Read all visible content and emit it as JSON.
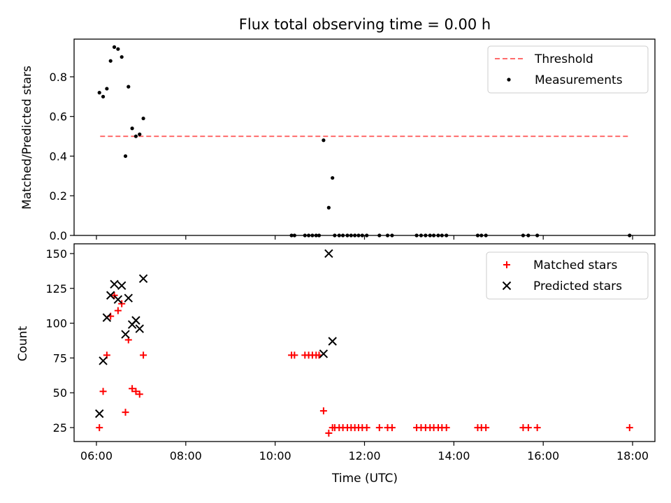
{
  "title": "Flux total observing time = 0.00 h",
  "xlabel": "Time (UTC)",
  "colors": {
    "threshold": "#ff6b6b",
    "matched": "#ff0000",
    "predicted": "#000000",
    "measurements": "#000000"
  },
  "chart_data": [
    {
      "type": "scatter",
      "ylabel": "Matched/Predicted stars",
      "xlim": [
        "05:30",
        "18:30"
      ],
      "ylim": [
        0,
        0.99
      ],
      "xticks": [
        "06:00",
        "08:00",
        "10:00",
        "12:00",
        "14:00",
        "16:00",
        "18:00"
      ],
      "yticks": [
        0.0,
        0.2,
        0.4,
        0.6,
        0.8
      ],
      "ytick_labels": [
        "0.0",
        "0.2",
        "0.4",
        "0.6",
        "0.8"
      ],
      "legend_position": "top-right",
      "series": [
        {
          "name": "Threshold",
          "kind": "dashed-line",
          "x": [
            "06:05",
            "17:55"
          ],
          "y": [
            0.5,
            0.5
          ]
        },
        {
          "name": "Measurements",
          "kind": "dot",
          "x": [
            "06:04",
            "06:09",
            "06:14",
            "06:19",
            "06:24",
            "06:29",
            "06:34",
            "06:39",
            "06:43",
            "06:48",
            "06:53",
            "06:58",
            "07:03",
            "11:05",
            "11:12",
            "11:17",
            "10:22",
            "10:26",
            "10:40",
            "10:45",
            "10:50",
            "10:55",
            "10:59",
            "11:20",
            "11:26",
            "11:31",
            "11:37",
            "11:42",
            "11:47",
            "11:52",
            "11:57",
            "12:03",
            "12:20",
            "12:31",
            "12:37",
            "13:10",
            "13:16",
            "13:22",
            "13:28",
            "13:33",
            "13:39",
            "13:44",
            "13:50",
            "14:32",
            "14:37",
            "14:43",
            "15:33",
            "15:40",
            "15:52",
            "17:56"
          ],
          "y": [
            0.72,
            0.7,
            0.74,
            0.88,
            0.95,
            0.94,
            0.9,
            0.4,
            0.75,
            0.54,
            0.5,
            0.51,
            0.59,
            0.48,
            0.14,
            0.29,
            0,
            0,
            0,
            0,
            0,
            0,
            0,
            0,
            0,
            0,
            0,
            0,
            0,
            0,
            0,
            0,
            0,
            0,
            0,
            0,
            0,
            0,
            0,
            0,
            0,
            0,
            0,
            0,
            0,
            0,
            0,
            0,
            0,
            0
          ]
        }
      ]
    },
    {
      "type": "scatter",
      "ylabel": "Count",
      "xlim": [
        "05:30",
        "18:30"
      ],
      "ylim": [
        15,
        157
      ],
      "xticks": [
        "06:00",
        "08:00",
        "10:00",
        "12:00",
        "14:00",
        "16:00",
        "18:00"
      ],
      "yticks": [
        25,
        50,
        75,
        100,
        125,
        150
      ],
      "ytick_labels": [
        "25",
        "50",
        "75",
        "100",
        "125",
        "150"
      ],
      "legend_position": "top-right",
      "series": [
        {
          "name": "Matched stars",
          "marker": "plus",
          "x": [
            "06:04",
            "06:09",
            "06:14",
            "06:19",
            "06:24",
            "06:29",
            "06:34",
            "06:39",
            "06:43",
            "06:48",
            "06:53",
            "06:58",
            "07:03",
            "10:22",
            "10:26",
            "10:40",
            "10:45",
            "10:50",
            "10:55",
            "10:59",
            "11:05",
            "11:12",
            "11:17",
            "11:20",
            "11:26",
            "11:31",
            "11:37",
            "11:42",
            "11:47",
            "11:52",
            "11:57",
            "12:03",
            "12:20",
            "12:31",
            "12:37",
            "13:10",
            "13:16",
            "13:22",
            "13:28",
            "13:33",
            "13:39",
            "13:44",
            "13:50",
            "14:32",
            "14:37",
            "14:43",
            "15:33",
            "15:40",
            "15:52",
            "17:56"
          ],
          "y": [
            25,
            51,
            77,
            105,
            120,
            109,
            114,
            36,
            88,
            53,
            51,
            49,
            77,
            77,
            77,
            77,
            77,
            77,
            77,
            77,
            37,
            21,
            25,
            25,
            25,
            25,
            25,
            25,
            25,
            25,
            25,
            25,
            25,
            25,
            25,
            25,
            25,
            25,
            25,
            25,
            25,
            25,
            25,
            25,
            25,
            25,
            25,
            25,
            25,
            25
          ]
        },
        {
          "name": "Predicted stars",
          "marker": "x",
          "x": [
            "06:04",
            "06:09",
            "06:14",
            "06:19",
            "06:24",
            "06:29",
            "06:34",
            "06:39",
            "06:43",
            "06:48",
            "06:53",
            "06:58",
            "07:03",
            "11:05",
            "11:12",
            "11:17"
          ],
          "y": [
            35,
            73,
            104,
            120,
            128,
            117,
            127,
            92,
            118,
            99,
            102,
            96,
            132,
            78,
            150,
            87
          ]
        }
      ]
    }
  ]
}
